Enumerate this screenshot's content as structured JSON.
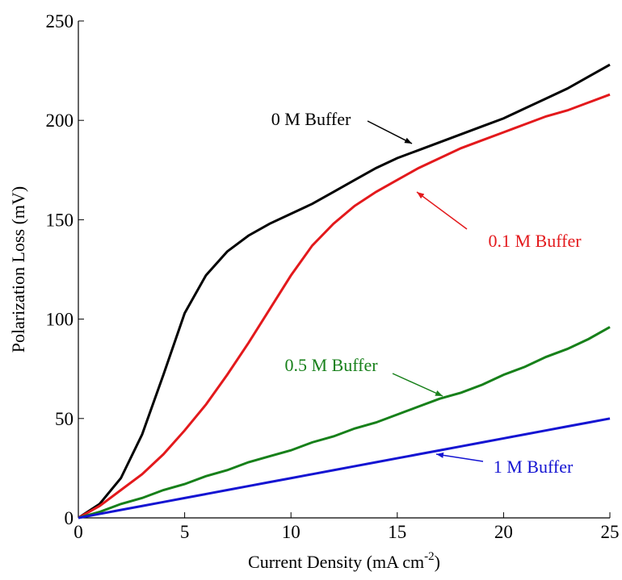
{
  "chart_data": {
    "type": "line",
    "y_label": "Polarization Loss (mV)",
    "x_label": [
      "Current Density (mA cm",
      "-2",
      ")"
    ],
    "x": [
      0,
      1,
      2,
      3,
      4,
      5,
      6,
      7,
      8,
      9,
      10,
      11,
      12,
      13,
      14,
      15,
      16,
      17,
      18,
      19,
      20,
      21,
      22,
      23,
      24,
      25
    ],
    "series": [
      {
        "name": "0 M Buffer",
        "color": "#000000",
        "values": [
          0,
          7,
          20,
          42,
          72,
          103,
          122,
          134,
          142,
          148,
          153,
          158,
          164,
          170,
          176,
          181,
          185,
          189,
          193,
          197,
          201,
          206,
          211,
          216,
          222,
          228
        ]
      },
      {
        "name": "0.1 M Buffer",
        "color": "#e3191c",
        "values": [
          0,
          6,
          14,
          22,
          32,
          44,
          57,
          72,
          88,
          105,
          122,
          137,
          148,
          157,
          164,
          170,
          176,
          181,
          186,
          190,
          194,
          198,
          202,
          205,
          209,
          213
        ]
      },
      {
        "name": "0.5 M Buffer",
        "color": "#17801a",
        "values": [
          0,
          3,
          7,
          10,
          14,
          17,
          21,
          24,
          28,
          31,
          34,
          38,
          41,
          45,
          48,
          52,
          56,
          60,
          63,
          67,
          72,
          76,
          81,
          85,
          90,
          96
        ]
      },
      {
        "name": "1 M Buffer",
        "color": "#1414d2",
        "values": [
          0,
          2,
          4,
          6,
          8,
          10,
          12,
          14,
          16,
          18,
          20,
          22,
          24,
          26,
          28,
          30,
          32,
          34,
          36,
          38,
          40,
          42,
          44,
          46,
          48,
          50
        ]
      }
    ],
    "xlim": [
      0,
      25
    ],
    "xticks": [
      0,
      5,
      10,
      15,
      20,
      25
    ],
    "ylim": [
      0,
      250
    ],
    "yticks": [
      0,
      50,
      100,
      150,
      200,
      250
    ]
  }
}
